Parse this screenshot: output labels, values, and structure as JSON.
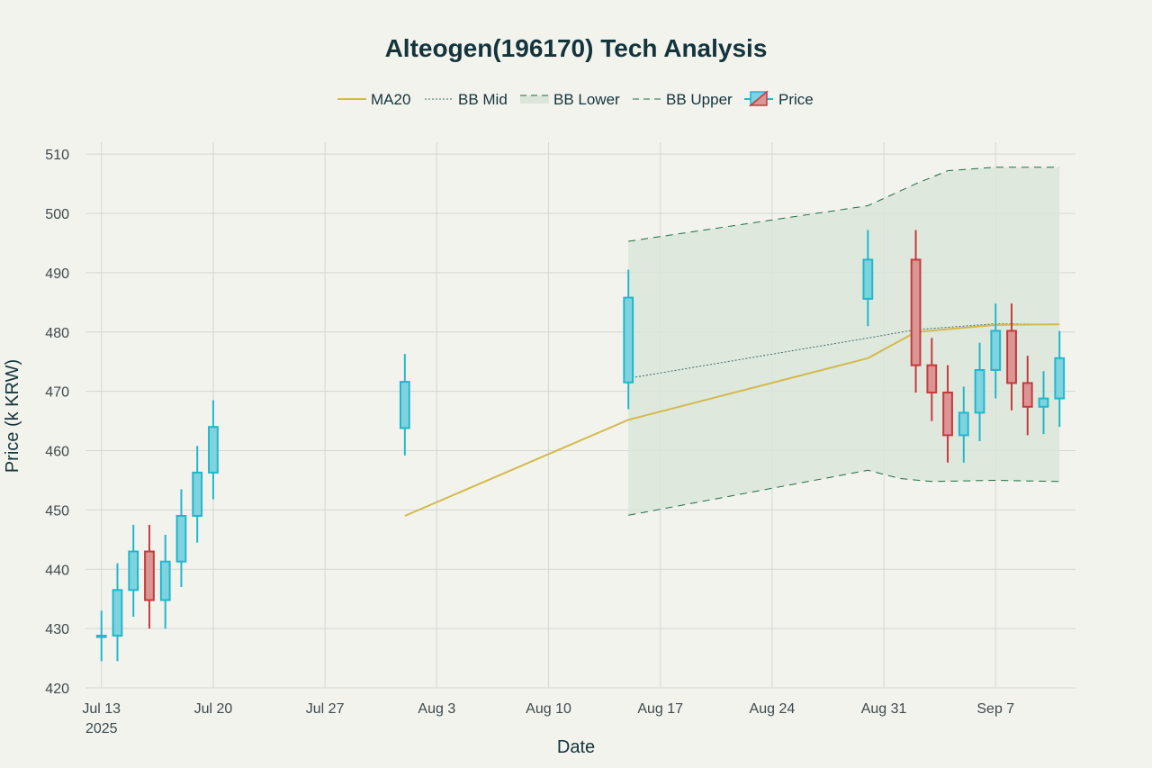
{
  "chart_data": {
    "type": "candlestick",
    "title": "Alteogen(196170) Tech Analysis",
    "xlabel": "Date",
    "ylabel": "Price (k KRW)",
    "ylim": [
      420,
      512
    ],
    "yticks": [
      420,
      430,
      440,
      450,
      460,
      470,
      480,
      490,
      500,
      510
    ],
    "xticks": [
      {
        "date": "2025-07-13",
        "label": "Jul 13",
        "sublabel": "2025"
      },
      {
        "date": "2025-07-20",
        "label": "Jul 20",
        "sublabel": ""
      },
      {
        "date": "2025-07-27",
        "label": "Jul 27",
        "sublabel": ""
      },
      {
        "date": "2025-08-03",
        "label": "Aug 3",
        "sublabel": ""
      },
      {
        "date": "2025-08-10",
        "label": "Aug 10",
        "sublabel": ""
      },
      {
        "date": "2025-08-17",
        "label": "Aug 17",
        "sublabel": ""
      },
      {
        "date": "2025-08-24",
        "label": "Aug 24",
        "sublabel": ""
      },
      {
        "date": "2025-08-31",
        "label": "Aug 31",
        "sublabel": ""
      },
      {
        "date": "2025-09-07",
        "label": "Sep 7",
        "sublabel": ""
      }
    ],
    "xlim": [
      "2025-07-12",
      "2025-09-12"
    ],
    "grid": true,
    "legend_position": "top-center",
    "legend": [
      "MA20",
      "BB Mid",
      "BB Lower",
      "BB Upper",
      "Price"
    ],
    "colors": {
      "up": "#1fb8cd",
      "up_fill": "#7fd3df",
      "down": "#c8393c",
      "down_fill": "#d99694",
      "ma20": "#d2ba4c",
      "bb_mid": "#3d6b6b",
      "bb_band": "#1e6e3c",
      "bb_fill": "#dbe5d9"
    },
    "candles": [
      {
        "date": "2025-07-13",
        "open": 428.8,
        "high": 433.0,
        "low": 424.5,
        "close": 428.8
      },
      {
        "date": "2025-07-14",
        "open": 428.8,
        "high": 441.0,
        "low": 424.5,
        "close": 436.5
      },
      {
        "date": "2025-07-15",
        "open": 436.5,
        "high": 447.5,
        "low": 432.0,
        "close": 443.0
      },
      {
        "date": "2025-07-16",
        "open": 443.0,
        "high": 447.5,
        "low": 430.0,
        "close": 434.8
      },
      {
        "date": "2025-07-17",
        "open": 434.8,
        "high": 445.8,
        "low": 430.0,
        "close": 441.3
      },
      {
        "date": "2025-07-18",
        "open": 441.3,
        "high": 453.5,
        "low": 437.0,
        "close": 449.0
      },
      {
        "date": "2025-07-19",
        "open": 449.0,
        "high": 460.8,
        "low": 444.5,
        "close": 456.3
      },
      {
        "date": "2025-07-20",
        "open": 456.3,
        "high": 468.5,
        "low": 451.8,
        "close": 464.0
      },
      {
        "date": "2025-08-01",
        "open": 463.8,
        "high": 476.3,
        "low": 459.2,
        "close": 471.6
      },
      {
        "date": "2025-08-15",
        "open": 471.5,
        "high": 490.5,
        "low": 467.0,
        "close": 485.8
      },
      {
        "date": "2025-08-30",
        "open": 485.6,
        "high": 497.2,
        "low": 481.0,
        "close": 492.2
      },
      {
        "date": "2025-09-02",
        "open": 492.2,
        "high": 497.2,
        "low": 469.8,
        "close": 474.4
      },
      {
        "date": "2025-09-03",
        "open": 474.4,
        "high": 479.0,
        "low": 465.0,
        "close": 469.8
      },
      {
        "date": "2025-09-04",
        "open": 469.8,
        "high": 474.4,
        "low": 458.0,
        "close": 462.6
      },
      {
        "date": "2025-09-05",
        "open": 462.6,
        "high": 470.8,
        "low": 458.0,
        "close": 466.4
      },
      {
        "date": "2025-09-06",
        "open": 466.4,
        "high": 478.2,
        "low": 461.6,
        "close": 473.6
      },
      {
        "date": "2025-09-07",
        "open": 473.6,
        "high": 484.8,
        "low": 468.8,
        "close": 480.2
      },
      {
        "date": "2025-09-08",
        "open": 480.2,
        "high": 484.8,
        "low": 466.8,
        "close": 471.4
      },
      {
        "date": "2025-09-09",
        "open": 471.4,
        "high": 476.0,
        "low": 462.6,
        "close": 467.4
      },
      {
        "date": "2025-09-10",
        "open": 467.4,
        "high": 473.4,
        "low": 462.8,
        "close": 468.8
      },
      {
        "date": "2025-09-11",
        "open": 468.8,
        "high": 480.2,
        "low": 464.0,
        "close": 475.6
      }
    ],
    "series": [
      {
        "name": "MA20",
        "points": [
          {
            "date": "2025-08-01",
            "value": 449.0
          },
          {
            "date": "2025-08-15",
            "value": 465.2
          },
          {
            "date": "2025-08-30",
            "value": 475.6
          },
          {
            "date": "2025-09-02",
            "value": 480.0
          },
          {
            "date": "2025-09-07",
            "value": 481.2
          },
          {
            "date": "2025-09-11",
            "value": 481.3
          }
        ]
      },
      {
        "name": "BB Mid",
        "points": [
          {
            "date": "2025-08-15",
            "value": 472.2
          },
          {
            "date": "2025-08-30",
            "value": 479.0
          },
          {
            "date": "2025-09-02",
            "value": 480.4
          },
          {
            "date": "2025-09-07",
            "value": 481.4
          },
          {
            "date": "2025-09-11",
            "value": 481.3
          }
        ]
      },
      {
        "name": "BB Lower",
        "points": [
          {
            "date": "2025-08-15",
            "value": 449.1
          },
          {
            "date": "2025-08-30",
            "value": 456.7
          },
          {
            "date": "2025-09-01",
            "value": 455.3
          },
          {
            "date": "2025-09-03",
            "value": 454.8
          },
          {
            "date": "2025-09-07",
            "value": 455.0
          },
          {
            "date": "2025-09-11",
            "value": 454.8
          }
        ]
      },
      {
        "name": "BB Upper",
        "points": [
          {
            "date": "2025-08-15",
            "value": 495.3
          },
          {
            "date": "2025-08-30",
            "value": 501.3
          },
          {
            "date": "2025-09-02",
            "value": 505.0
          },
          {
            "date": "2025-09-04",
            "value": 507.2
          },
          {
            "date": "2025-09-07",
            "value": 507.8
          },
          {
            "date": "2025-09-11",
            "value": 507.8
          }
        ]
      }
    ]
  }
}
